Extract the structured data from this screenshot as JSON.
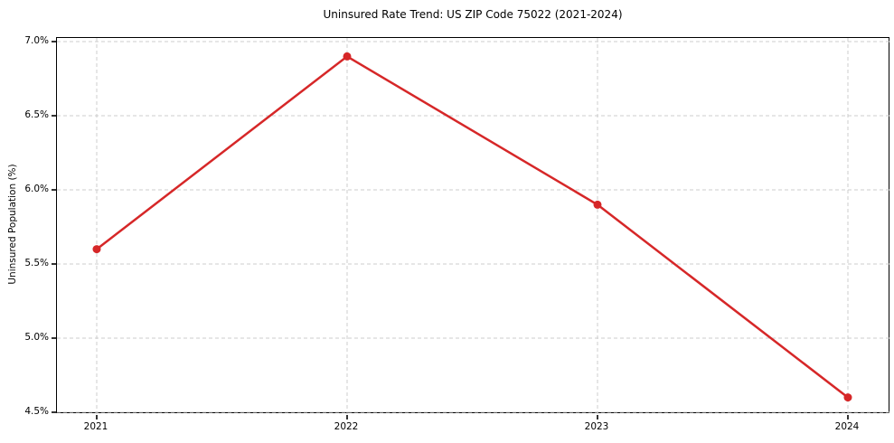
{
  "chart_data": {
    "type": "line",
    "title": "Uninsured Rate Trend: US ZIP Code 75022 (2021-2024)",
    "xlabel": "",
    "ylabel": "Uninsured Population (%)",
    "x": [
      2021,
      2022,
      2023,
      2024
    ],
    "xtick_labels": [
      "2021",
      "2022",
      "2023",
      "2024"
    ],
    "series": [
      {
        "name": "uninsured-rate",
        "values": [
          5.6,
          6.9,
          5.9,
          4.6
        ]
      }
    ],
    "ylim": [
      4.5,
      7.0
    ],
    "yticks": [
      4.5,
      5.0,
      5.5,
      6.0,
      6.5,
      7.0
    ],
    "ytick_labels": [
      "4.5%",
      "5.0%",
      "5.5%",
      "6.0%",
      "6.5%",
      "7.0%"
    ],
    "grid": "dashed",
    "legend_position": "none",
    "colors": {
      "line": "#d62728",
      "marker": "#d62728",
      "grid": "#cccccc",
      "spine": "#000000",
      "text": "#000000",
      "background": "#ffffff"
    }
  }
}
